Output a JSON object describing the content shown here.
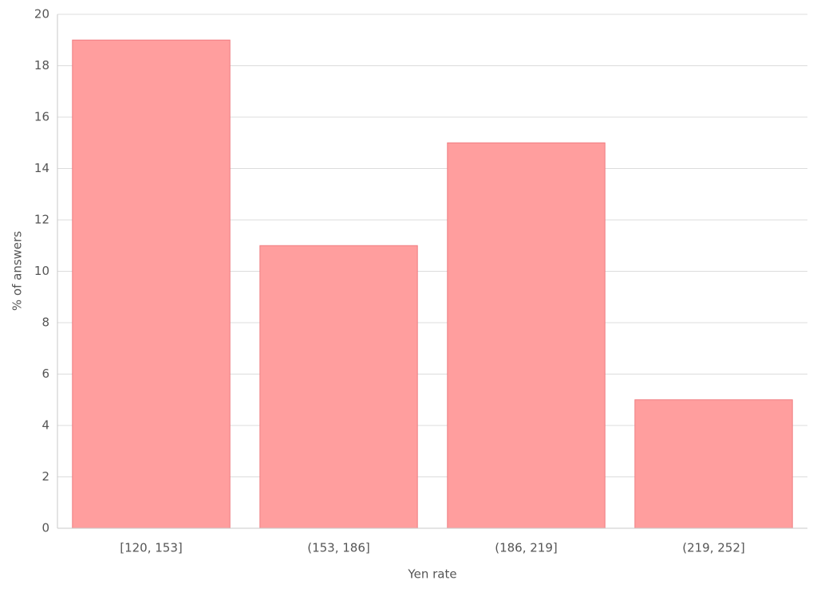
{
  "chart_data": {
    "type": "bar",
    "x_label": "Yen rate",
    "y_label": "% of answers",
    "categories": [
      "[120, 153]",
      "(153, 186]",
      "(186, 219]",
      "(219, 252]"
    ],
    "values": [
      19,
      11,
      15,
      5
    ],
    "color": "#ff9e9e",
    "edge_color": "#f07c80",
    "ylim": [
      0,
      20
    ],
    "yticks": [
      0,
      2,
      4,
      6,
      8,
      10,
      12,
      14,
      16,
      18,
      20
    ],
    "grid": true
  }
}
